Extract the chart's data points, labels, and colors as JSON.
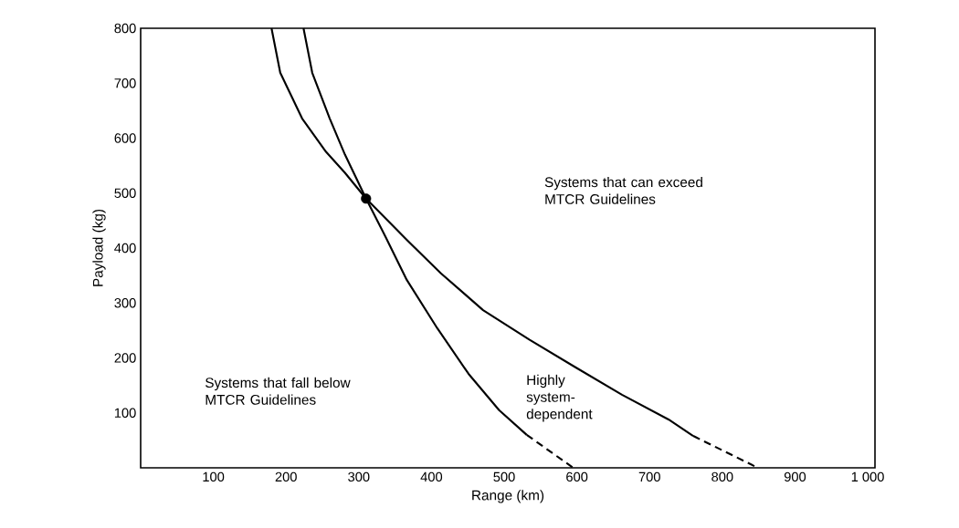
{
  "chart_data": {
    "type": "line",
    "xlabel": "Range (km)",
    "ylabel": "Payload (kg)",
    "xlim": [
      0,
      1010
    ],
    "ylim": [
      0,
      800
    ],
    "xticks": [
      100,
      200,
      300,
      400,
      500,
      600,
      700,
      800,
      900,
      {
        "value": 1000,
        "label": "1 000"
      }
    ],
    "yticks": [
      100,
      200,
      300,
      400,
      500,
      600,
      700,
      800
    ],
    "series": [
      {
        "color": "#000000",
        "line_style": "solid",
        "x": [
          180,
          192,
          222,
          255,
          281,
          310,
          366,
          413,
          471,
          535,
          598,
          662,
          726,
          760
        ],
        "values": [
          800,
          719,
          636,
          575,
          537,
          490,
          415,
          354,
          287,
          233,
          183,
          133,
          88,
          58
        ]
      },
      {
        "color": "#000000",
        "line_style": "dashed",
        "x": [
          760,
          849
        ],
        "values": [
          58,
          0
        ]
      },
      {
        "color": "#000000",
        "line_style": "solid",
        "x": [
          224,
          236,
          260,
          281,
          310,
          337,
          366,
          408,
          451,
          493,
          531
        ],
        "values": [
          800,
          719,
          636,
          570,
          490,
          420,
          342,
          254,
          171,
          105,
          60
        ]
      },
      {
        "color": "#000000",
        "line_style": "dashed",
        "x": [
          531,
          595
        ],
        "values": [
          60,
          0
        ]
      },
      {
        "type": "scatter",
        "marker": "circle",
        "color": "#000000",
        "x": [
          310
        ],
        "values": [
          490
        ]
      }
    ],
    "annotations": [
      "Systems that can exceed MTCR Guidelines",
      "Systems that fall below MTCR Guidelines",
      "Highly system-dependent"
    ]
  }
}
